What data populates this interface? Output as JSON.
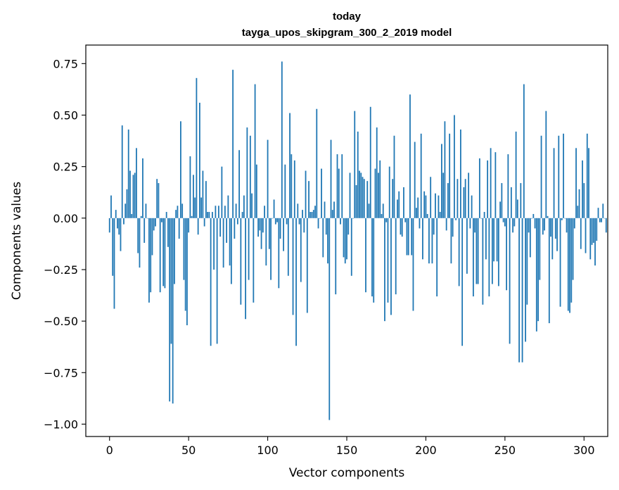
{
  "chart_data": {
    "type": "bar",
    "title": "today",
    "subtitle": "tayga_upos_skipgram_300_2_2019 model",
    "xlabel": "Vector components",
    "ylabel": "Components values",
    "xlim": [
      -15,
      315
    ],
    "ylim": [
      -1.06,
      0.84
    ],
    "xticks": [
      0,
      50,
      100,
      150,
      200,
      250,
      300
    ],
    "xtick_labels": [
      "0",
      "50",
      "100",
      "150",
      "200",
      "250",
      "300"
    ],
    "yticks": [
      -1.0,
      -0.75,
      -0.5,
      -0.25,
      0.0,
      0.25,
      0.5,
      0.75
    ],
    "ytick_labels": [
      "−1.00",
      "−0.75",
      "−0.50",
      "−0.25",
      "0.00",
      "0.25",
      "0.50",
      "0.75"
    ],
    "bar_color": "#1f77b4",
    "grid": false,
    "legend": "none",
    "series": [
      {
        "values": [
          -0.07,
          0.11,
          -0.28,
          -0.44,
          0.04,
          -0.05,
          -0.08,
          -0.16,
          0.45,
          -0.03,
          0.07,
          0.14,
          0.43,
          0.23,
          0.02,
          0.21,
          0.22,
          0.34,
          -0.17,
          -0.24,
          0.01,
          0.29,
          -0.12,
          0.07,
          0.0,
          -0.41,
          -0.36,
          -0.18,
          -0.06,
          -0.04,
          0.19,
          0.17,
          -0.36,
          -0.02,
          -0.33,
          -0.34,
          0.03,
          -0.14,
          -0.89,
          -0.61,
          -0.9,
          -0.32,
          0.04,
          0.06,
          -0.1,
          0.47,
          0.07,
          -0.3,
          -0.45,
          -0.52,
          -0.07,
          0.3,
          0.01,
          0.21,
          0.1,
          0.68,
          -0.08,
          0.56,
          0.1,
          0.23,
          -0.04,
          0.18,
          0.03,
          0.03,
          -0.62,
          0.03,
          -0.25,
          0.06,
          -0.61,
          0.06,
          -0.09,
          0.25,
          -0.24,
          0.06,
          -0.12,
          0.11,
          -0.23,
          -0.32,
          0.72,
          -0.1,
          0.07,
          -0.03,
          0.33,
          -0.42,
          0.03,
          0.11,
          -0.49,
          0.44,
          -0.3,
          0.4,
          0.12,
          -0.41,
          0.65,
          0.26,
          -0.09,
          -0.06,
          -0.15,
          -0.07,
          0.06,
          -0.23,
          0.38,
          -0.15,
          -0.3,
          0.0,
          0.09,
          -0.03,
          -0.02,
          -0.34,
          -0.1,
          0.76,
          -0.16,
          0.26,
          -0.03,
          -0.28,
          0.51,
          0.31,
          -0.47,
          0.28,
          -0.62,
          0.07,
          -0.03,
          -0.31,
          0.04,
          -0.07,
          0.23,
          -0.46,
          0.18,
          0.03,
          0.03,
          0.04,
          0.06,
          0.53,
          -0.05,
          0.0,
          0.24,
          -0.19,
          0.08,
          -0.08,
          -0.22,
          -0.98,
          0.38,
          0.04,
          0.08,
          -0.37,
          0.31,
          0.24,
          -0.03,
          0.31,
          -0.19,
          -0.22,
          -0.2,
          -0.08,
          0.22,
          -0.28,
          0.0,
          0.52,
          0.16,
          0.42,
          0.23,
          0.22,
          0.2,
          0.19,
          -0.36,
          0.18,
          0.07,
          0.54,
          -0.38,
          -0.41,
          0.24,
          0.44,
          0.22,
          0.28,
          0.02,
          0.07,
          -0.5,
          -0.02,
          -0.41,
          0.25,
          -0.47,
          0.19,
          0.4,
          -0.37,
          0.09,
          0.13,
          -0.08,
          -0.09,
          0.15,
          -0.02,
          -0.18,
          -0.18,
          0.6,
          -0.18,
          -0.45,
          0.37,
          0.05,
          0.1,
          -0.05,
          0.41,
          -0.2,
          0.13,
          0.11,
          0.02,
          -0.22,
          0.2,
          -0.22,
          -0.08,
          0.12,
          -0.38,
          0.11,
          0.03,
          0.36,
          0.22,
          0.47,
          -0.06,
          0.17,
          0.41,
          -0.22,
          -0.09,
          0.5,
          -0.01,
          0.19,
          -0.33,
          0.43,
          -0.62,
          0.15,
          0.19,
          -0.27,
          0.22,
          -0.05,
          0.11,
          -0.38,
          -0.07,
          -0.32,
          -0.32,
          0.29,
          0.0,
          -0.42,
          0.03,
          -0.2,
          0.28,
          -0.38,
          0.34,
          -0.32,
          -0.21,
          0.32,
          -0.21,
          -0.33,
          0.08,
          0.17,
          -0.02,
          -0.04,
          -0.35,
          0.31,
          -0.61,
          0.15,
          -0.07,
          -0.04,
          0.42,
          0.09,
          -0.7,
          0.17,
          -0.7,
          0.65,
          -0.6,
          -0.42,
          -0.07,
          -0.19,
          0.0,
          0.02,
          -0.05,
          -0.55,
          -0.5,
          -0.3,
          0.4,
          -0.08,
          -0.06,
          0.52,
          0.01,
          -0.51,
          -0.09,
          -0.2,
          0.34,
          -0.1,
          -0.16,
          0.4,
          -0.43,
          -0.01,
          0.41,
          0.0,
          -0.07,
          -0.45,
          -0.46,
          -0.41,
          -0.3,
          -0.05,
          0.34,
          0.06,
          0.14,
          -0.15,
          0.28,
          0.17,
          -0.17,
          0.41,
          0.34,
          -0.2,
          -0.13,
          -0.12,
          -0.23,
          -0.11,
          0.05,
          -0.02,
          -0.02,
          0.07,
          0.0,
          -0.07
        ]
      }
    ]
  }
}
